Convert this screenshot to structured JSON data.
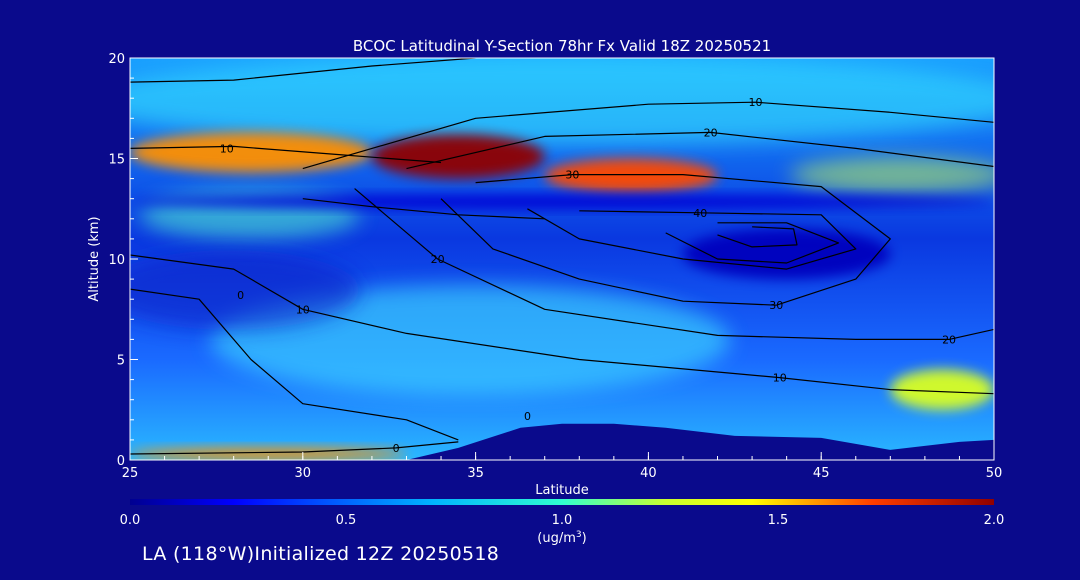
{
  "chart_data": {
    "type": "heatmap",
    "title": "BCOC Latitudinal Y-Section 78hr  Fx Valid 18Z 20250521",
    "xlabel": "Latitude",
    "ylabel": "Altitude (km)",
    "xlim": [
      25,
      50
    ],
    "ylim": [
      0,
      20
    ],
    "x_ticks": [
      "25",
      "30",
      "35",
      "40",
      "45",
      "50"
    ],
    "y_ticks": [
      "0",
      "5",
      "10",
      "15",
      "20"
    ],
    "colorbar": {
      "ticks": [
        "0.0",
        "0.5",
        "1.0",
        "1.5",
        "2.0"
      ],
      "label_line1": "(ug/m",
      "label_sup": "3",
      "label_line2": ")",
      "range": [
        0,
        2
      ],
      "colormap": "jet"
    },
    "heat_features": [
      {
        "lat_min": 25,
        "lat_max": 32,
        "alt_min": 14.3,
        "alt_max": 16.3,
        "value": 1.6
      },
      {
        "lat_min": 32,
        "lat_max": 37,
        "alt_min": 14.0,
        "alt_max": 16.2,
        "value": 2.0
      },
      {
        "lat_min": 37,
        "lat_max": 42,
        "alt_min": 13.3,
        "alt_max": 15.0,
        "value": 1.7
      },
      {
        "lat_min": 25,
        "lat_max": 50,
        "alt_min": 12.5,
        "alt_max": 13.2,
        "value": 0.15
      },
      {
        "lat_min": 25,
        "lat_max": 33,
        "alt_min": 0.0,
        "alt_max": 0.6,
        "value": 1.6
      },
      {
        "lat_min": 47,
        "lat_max": 50,
        "alt_min": 2.5,
        "alt_max": 4.5,
        "value": 1.3
      },
      {
        "lat_min": 41,
        "lat_max": 47,
        "alt_min": 9.0,
        "alt_max": 11.5,
        "value": 0.1
      }
    ],
    "contours": [
      {
        "level": "0",
        "label_lat": 28.2,
        "label_alt": 8.2
      },
      {
        "level": "0",
        "label_lat": 32.7,
        "label_alt": 0.6
      },
      {
        "level": "0",
        "label_lat": 36.5,
        "label_alt": 2.2
      },
      {
        "level": "10",
        "label_lat": 27.8,
        "label_alt": 15.5
      },
      {
        "level": "10",
        "label_lat": 30.0,
        "label_alt": 7.5
      },
      {
        "level": "10",
        "label_lat": 43.8,
        "label_alt": 4.1
      },
      {
        "level": "10",
        "label_lat": 43.1,
        "label_alt": 17.8
      },
      {
        "level": "20",
        "label_lat": 33.9,
        "label_alt": 10.0
      },
      {
        "level": "20",
        "label_lat": 48.7,
        "label_alt": 6.0
      },
      {
        "level": "20",
        "label_lat": 41.8,
        "label_alt": 16.3
      },
      {
        "level": "30",
        "label_lat": 37.8,
        "label_alt": 14.2
      },
      {
        "level": "30",
        "label_lat": 43.7,
        "label_alt": 7.7
      },
      {
        "level": "40",
        "label_lat": 41.5,
        "label_alt": 12.3
      }
    ],
    "terrain_alt": [
      [
        25,
        0
      ],
      [
        33,
        0
      ],
      [
        34.5,
        0.6
      ],
      [
        36.3,
        1.6
      ],
      [
        37.5,
        1.8
      ],
      [
        39,
        1.8
      ],
      [
        40.5,
        1.6
      ],
      [
        42.5,
        1.2
      ],
      [
        45,
        1.1
      ],
      [
        47,
        0.5
      ],
      [
        49,
        0.9
      ],
      [
        50,
        1.0
      ]
    ],
    "footer": "LA (118°W)Initialized 12Z 20250518"
  }
}
